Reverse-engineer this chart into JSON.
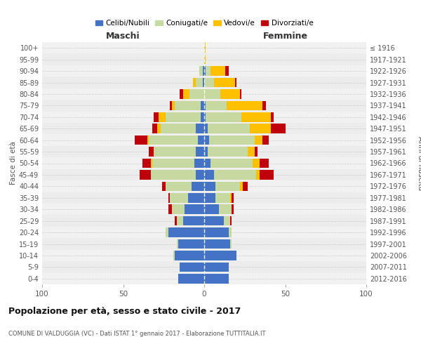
{
  "age_groups": [
    "100+",
    "95-99",
    "90-94",
    "85-89",
    "80-84",
    "75-79",
    "70-74",
    "65-69",
    "60-64",
    "55-59",
    "50-54",
    "45-49",
    "40-44",
    "35-39",
    "30-34",
    "25-29",
    "20-24",
    "15-19",
    "10-14",
    "5-9",
    "0-4"
  ],
  "birth_years": [
    "≤ 1916",
    "1917-1921",
    "1922-1926",
    "1927-1931",
    "1932-1936",
    "1937-1941",
    "1942-1946",
    "1947-1951",
    "1952-1956",
    "1957-1961",
    "1962-1966",
    "1967-1971",
    "1972-1976",
    "1977-1981",
    "1982-1986",
    "1987-1991",
    "1992-1996",
    "1997-2001",
    "2002-2006",
    "2007-2011",
    "2012-2016"
  ],
  "maschi": {
    "celibi": [
      0,
      0,
      1,
      1,
      0,
      2,
      2,
      5,
      4,
      5,
      6,
      5,
      8,
      10,
      12,
      13,
      22,
      16,
      18,
      15,
      16
    ],
    "coniugati": [
      0,
      0,
      2,
      4,
      9,
      16,
      22,
      22,
      30,
      26,
      26,
      28,
      16,
      11,
      8,
      4,
      2,
      1,
      1,
      0,
      0
    ],
    "vedovi": [
      0,
      0,
      0,
      2,
      4,
      2,
      4,
      2,
      1,
      0,
      1,
      0,
      0,
      0,
      0,
      0,
      0,
      0,
      0,
      0,
      0
    ],
    "divorziati": [
      0,
      0,
      0,
      0,
      2,
      1,
      3,
      3,
      8,
      3,
      5,
      7,
      2,
      1,
      2,
      1,
      0,
      0,
      0,
      0,
      0
    ]
  },
  "femmine": {
    "nubili": [
      0,
      0,
      1,
      0,
      0,
      1,
      1,
      2,
      3,
      2,
      4,
      6,
      7,
      7,
      9,
      12,
      15,
      16,
      20,
      15,
      15
    ],
    "coniugate": [
      0,
      0,
      3,
      6,
      10,
      13,
      22,
      26,
      28,
      25,
      26,
      26,
      15,
      9,
      8,
      4,
      2,
      1,
      0,
      0,
      0
    ],
    "vedove": [
      1,
      1,
      9,
      13,
      12,
      22,
      18,
      13,
      5,
      4,
      4,
      2,
      2,
      1,
      0,
      0,
      0,
      0,
      0,
      0,
      0
    ],
    "divorziate": [
      0,
      0,
      2,
      1,
      1,
      2,
      2,
      9,
      4,
      2,
      6,
      9,
      3,
      1,
      1,
      1,
      0,
      0,
      0,
      0,
      0
    ]
  },
  "colors": {
    "celibi": "#4472c4",
    "coniugati": "#c5d9a0",
    "vedovi": "#ffc000",
    "divorziati": "#c0000b"
  },
  "xlim": 100,
  "title": "Popolazione per età, sesso e stato civile - 2017",
  "subtitle": "COMUNE DI VALDUGGIA (VC) - Dati ISTAT 1° gennaio 2017 - Elaborazione TUTTITALIA.IT",
  "legend_labels": [
    "Celibi/Nubili",
    "Coniugati/e",
    "Vedovi/e",
    "Divorziati/e"
  ],
  "ylabel_left": "Fasce di età",
  "ylabel_right": "Anni di nascita",
  "xlabel_maschi": "Maschi",
  "xlabel_femmine": "Femmine"
}
